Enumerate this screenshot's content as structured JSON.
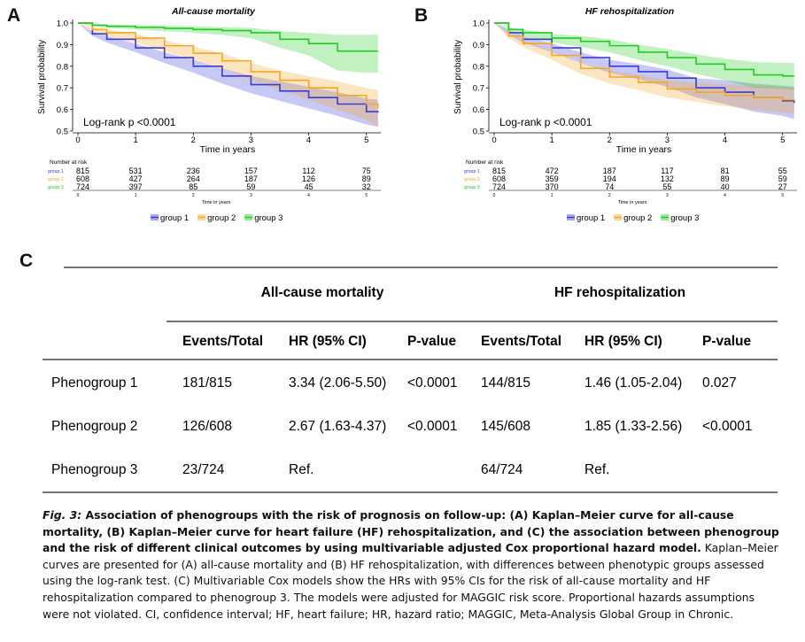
{
  "panels": {
    "a": "A",
    "b": "B",
    "c": "C"
  },
  "chart_data": [
    {
      "type": "line",
      "title": "All-cause mortality",
      "xlabel": "Time in years",
      "ylabel": "Survival probability",
      "xlim": [
        0,
        5.2
      ],
      "ylim": [
        0.5,
        1.0
      ],
      "xticks": [
        "0",
        "1",
        "2",
        "3",
        "4",
        "5"
      ],
      "yticks": [
        "0.5",
        "0.6",
        "0.7",
        "0.8",
        "0.9",
        "1.0"
      ],
      "annotation": "Log-rank p <0.0001",
      "series": [
        {
          "name": "group 1",
          "color": "#3b3bd6",
          "x": [
            0,
            0.25,
            0.5,
            1,
            1.5,
            2,
            2.5,
            3,
            3.5,
            4,
            4.5,
            5,
            5.2
          ],
          "y": [
            1.0,
            0.95,
            0.925,
            0.885,
            0.84,
            0.8,
            0.755,
            0.715,
            0.685,
            0.655,
            0.625,
            0.59,
            0.585
          ],
          "lo": [
            1.0,
            0.94,
            0.91,
            0.865,
            0.815,
            0.77,
            0.72,
            0.675,
            0.64,
            0.605,
            0.57,
            0.53,
            0.52
          ],
          "hi": [
            1.0,
            0.96,
            0.94,
            0.905,
            0.865,
            0.83,
            0.79,
            0.755,
            0.73,
            0.705,
            0.68,
            0.65,
            0.645
          ]
        },
        {
          "name": "group 2",
          "color": "#f5a623",
          "x": [
            0,
            0.25,
            0.5,
            1,
            1.5,
            2,
            2.5,
            3,
            3.5,
            4,
            4.5,
            5,
            5.2
          ],
          "y": [
            1.0,
            0.97,
            0.955,
            0.93,
            0.895,
            0.86,
            0.825,
            0.775,
            0.735,
            0.7,
            0.665,
            0.625,
            0.605
          ],
          "lo": [
            1.0,
            0.96,
            0.94,
            0.91,
            0.87,
            0.83,
            0.79,
            0.735,
            0.69,
            0.645,
            0.6,
            0.55,
            0.52
          ],
          "hi": [
            1.0,
            0.98,
            0.97,
            0.95,
            0.92,
            0.89,
            0.86,
            0.815,
            0.78,
            0.755,
            0.73,
            0.7,
            0.69
          ]
        },
        {
          "name": "group 3",
          "color": "#22cc22",
          "x": [
            0,
            0.25,
            0.5,
            1,
            1.5,
            2,
            2.5,
            3,
            3.5,
            4,
            4.5,
            5,
            5.2
          ],
          "y": [
            1.0,
            0.99,
            0.985,
            0.98,
            0.975,
            0.97,
            0.965,
            0.955,
            0.925,
            0.905,
            0.87,
            0.87,
            0.87
          ],
          "lo": [
            1.0,
            0.985,
            0.978,
            0.97,
            0.962,
            0.955,
            0.945,
            0.93,
            0.885,
            0.85,
            0.78,
            0.77,
            0.77
          ],
          "hi": [
            1.0,
            0.995,
            0.992,
            0.99,
            0.988,
            0.985,
            0.982,
            0.978,
            0.962,
            0.955,
            0.945,
            0.945,
            0.945
          ]
        }
      ],
      "risk_table": {
        "title": "Number at risk",
        "xlabel": "Time in years",
        "ticks": [
          "0",
          "1",
          "2",
          "3",
          "4",
          "5"
        ],
        "rows": [
          {
            "label": "group 1",
            "values": [
              "815",
              "531",
              "236",
              "157",
              "112",
              "75"
            ]
          },
          {
            "label": "group 2",
            "values": [
              "608",
              "427",
              "264",
              "187",
              "126",
              "89"
            ]
          },
          {
            "label": "group 3",
            "values": [
              "724",
              "397",
              "85",
              "59",
              "45",
              "32"
            ]
          }
        ]
      },
      "legend": [
        "group 1",
        "group 2",
        "group 3"
      ]
    },
    {
      "type": "line",
      "title": "HF rehospitalization",
      "xlabel": "Time in years",
      "ylabel": "Survival probability",
      "xlim": [
        0,
        5.2
      ],
      "ylim": [
        0.5,
        1.0
      ],
      "xticks": [
        "0",
        "1",
        "2",
        "3",
        "4",
        "5"
      ],
      "yticks": [
        "0.5",
        "0.6",
        "0.7",
        "0.8",
        "0.9",
        "1.0"
      ],
      "annotation": "Log-rank p <0.0001",
      "series": [
        {
          "name": "group 1",
          "color": "#3b3bd6",
          "x": [
            0,
            0.25,
            0.5,
            1,
            1.5,
            2,
            2.5,
            3,
            3.5,
            4,
            4.5,
            5,
            5.2
          ],
          "y": [
            1.0,
            0.955,
            0.925,
            0.885,
            0.84,
            0.8,
            0.775,
            0.745,
            0.7,
            0.68,
            0.655,
            0.64,
            0.63
          ],
          "lo": [
            1.0,
            0.945,
            0.91,
            0.865,
            0.815,
            0.77,
            0.74,
            0.705,
            0.655,
            0.625,
            0.59,
            0.57,
            0.555
          ],
          "hi": [
            1.0,
            0.965,
            0.94,
            0.905,
            0.865,
            0.83,
            0.81,
            0.785,
            0.745,
            0.735,
            0.72,
            0.71,
            0.705
          ]
        },
        {
          "name": "group 2",
          "color": "#f5a623",
          "x": [
            0,
            0.25,
            0.5,
            1,
            1.5,
            2,
            2.5,
            3,
            3.5,
            4,
            4.5,
            5,
            5.2
          ],
          "y": [
            1.0,
            0.94,
            0.905,
            0.85,
            0.79,
            0.75,
            0.725,
            0.695,
            0.68,
            0.665,
            0.655,
            0.645,
            0.64
          ],
          "lo": [
            1.0,
            0.93,
            0.89,
            0.83,
            0.765,
            0.72,
            0.69,
            0.655,
            0.635,
            0.615,
            0.6,
            0.585,
            0.58
          ],
          "hi": [
            1.0,
            0.95,
            0.92,
            0.87,
            0.815,
            0.78,
            0.76,
            0.735,
            0.725,
            0.715,
            0.71,
            0.705,
            0.7
          ]
        },
        {
          "name": "group 3",
          "color": "#22cc22",
          "x": [
            0,
            0.25,
            0.5,
            1,
            1.5,
            2,
            2.5,
            3,
            3.5,
            4,
            4.5,
            5,
            5.2
          ],
          "y": [
            1.0,
            0.97,
            0.955,
            0.93,
            0.915,
            0.895,
            0.865,
            0.84,
            0.81,
            0.785,
            0.76,
            0.755,
            0.755
          ],
          "lo": [
            1.0,
            0.96,
            0.94,
            0.91,
            0.89,
            0.865,
            0.83,
            0.8,
            0.765,
            0.735,
            0.7,
            0.695,
            0.69
          ],
          "hi": [
            1.0,
            0.98,
            0.97,
            0.95,
            0.94,
            0.925,
            0.9,
            0.88,
            0.855,
            0.835,
            0.82,
            0.815,
            0.815
          ]
        }
      ],
      "risk_table": {
        "title": "Number at risk",
        "xlabel": "Time in years",
        "ticks": [
          "0",
          "1",
          "2",
          "3",
          "4",
          "5"
        ],
        "rows": [
          {
            "label": "group 1",
            "values": [
              "815",
              "472",
              "187",
              "117",
              "81",
              "55"
            ]
          },
          {
            "label": "group 2",
            "values": [
              "608",
              "359",
              "194",
              "132",
              "89",
              "59"
            ]
          },
          {
            "label": "group 3",
            "values": [
              "724",
              "370",
              "74",
              "55",
              "40",
              "27"
            ]
          }
        ]
      },
      "legend": [
        "group 1",
        "group 2",
        "group 3"
      ]
    },
    {
      "type": "table",
      "groups": [
        "All-cause mortality",
        "HF rehospitalization"
      ],
      "columns": [
        "",
        "Events/Total",
        "HR (95% CI)",
        "P-value",
        "Events/Total",
        "HR (95% CI)",
        "P-value"
      ],
      "rows": [
        [
          "Phenogroup 1",
          "181/815",
          "3.34 (2.06-5.50)",
          "<0.0001",
          "144/815",
          "1.46 (1.05-2.04)",
          "0.027"
        ],
        [
          "Phenogroup 2",
          "126/608",
          "2.67 (1.63-4.37)",
          "<0.0001",
          "145/608",
          "1.85 (1.33-2.56)",
          "<0.0001"
        ],
        [
          "Phenogroup 3",
          "23/724",
          "Ref.",
          "",
          "64/724",
          "Ref.",
          ""
        ]
      ]
    }
  ],
  "caption": {
    "fig_label": "Fig. 3:",
    "lead": " Association of phenogroups with the risk of prognosis on follow-up: (A) Kaplan–Meier curve for all-cause mortality, (B) Kaplan–Meier curve for heart failure (HF) rehospitalization, and (C) the association between phenogroup and the risk of different clinical outcomes by using multivariable adjusted Cox proportional hazard model.",
    "body": " Kaplan–Meier curves are presented for (A) all-cause mortality and (B) HF rehospitalization, with differences between phenotypic groups assessed using the log-rank test. (C) Multivariable Cox models show the HRs with 95% CIs for the risk of all-cause mortality and HF rehospitalization compared to phenogroup 3. The models were adjusted for MAGGIC risk score. Proportional hazards assumptions were not violated. CI, confidence interval; HF, heart failure; HR, hazard ratio; MAGGIC, Meta-Analysis Global Group in Chronic."
  }
}
